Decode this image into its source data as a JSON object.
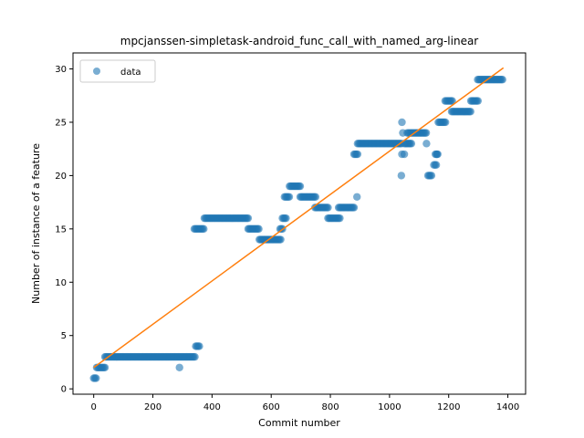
{
  "chart_data": {
    "type": "scatter",
    "title": "mpcjanssen-simpletask-android_func_call_with_named_arg-linear",
    "xlabel": "Commit number",
    "ylabel": "Number of instance of a feature",
    "xlim": [
      -70,
      1460
    ],
    "ylim": [
      -0.5,
      31.5
    ],
    "xticks": [
      0,
      200,
      400,
      600,
      800,
      1000,
      1200,
      1400
    ],
    "yticks": [
      0,
      5,
      10,
      15,
      20,
      25,
      30
    ],
    "grid": false,
    "legend": {
      "position": "top-left",
      "entries": [
        "data"
      ]
    },
    "colors": {
      "data": "#1f77b4",
      "fit": "#ff7f0e"
    },
    "series": [
      {
        "name": "data",
        "kind": "scatter",
        "segments": [
          {
            "x_start": 0,
            "x_end": 10,
            "step": 4,
            "y": 1
          },
          {
            "x_start": 10,
            "x_end": 38,
            "step": 4,
            "y": 2
          },
          {
            "x_start": 38,
            "x_end": 345,
            "step": 4,
            "y": 3
          },
          {
            "x_start": 345,
            "x_end": 358,
            "step": 4,
            "y": 4
          },
          {
            "x_start": 340,
            "x_end": 372,
            "step": 4,
            "y": 15
          },
          {
            "x_start": 374,
            "x_end": 522,
            "step": 4,
            "y": 16
          },
          {
            "x_start": 522,
            "x_end": 560,
            "step": 4,
            "y": 15
          },
          {
            "x_start": 560,
            "x_end": 632,
            "step": 4,
            "y": 14
          },
          {
            "x_start": 630,
            "x_end": 640,
            "step": 4,
            "y": 15
          },
          {
            "x_start": 638,
            "x_end": 650,
            "step": 4,
            "y": 16
          },
          {
            "x_start": 645,
            "x_end": 662,
            "step": 4,
            "y": 18
          },
          {
            "x_start": 662,
            "x_end": 700,
            "step": 4,
            "y": 19
          },
          {
            "x_start": 698,
            "x_end": 752,
            "step": 4,
            "y": 18
          },
          {
            "x_start": 748,
            "x_end": 795,
            "step": 4,
            "y": 17
          },
          {
            "x_start": 792,
            "x_end": 832,
            "step": 4,
            "y": 16
          },
          {
            "x_start": 828,
            "x_end": 880,
            "step": 4,
            "y": 17
          },
          {
            "x_start": 880,
            "x_end": 892,
            "step": 4,
            "y": 22
          },
          {
            "x_start": 892,
            "x_end": 1040,
            "step": 4,
            "y": 23
          },
          {
            "x_start": 1050,
            "x_end": 1075,
            "step": 4,
            "y": 23
          },
          {
            "x_start": 1060,
            "x_end": 1125,
            "step": 4,
            "y": 24
          },
          {
            "x_start": 1130,
            "x_end": 1145,
            "step": 4,
            "y": 20
          },
          {
            "x_start": 1150,
            "x_end": 1160,
            "step": 4,
            "y": 21
          },
          {
            "x_start": 1155,
            "x_end": 1165,
            "step": 4,
            "y": 22
          },
          {
            "x_start": 1165,
            "x_end": 1190,
            "step": 4,
            "y": 25
          },
          {
            "x_start": 1188,
            "x_end": 1215,
            "step": 4,
            "y": 27
          },
          {
            "x_start": 1210,
            "x_end": 1275,
            "step": 4,
            "y": 26
          },
          {
            "x_start": 1275,
            "x_end": 1300,
            "step": 4,
            "y": 27
          },
          {
            "x_start": 1298,
            "x_end": 1385,
            "step": 4,
            "y": 29
          }
        ],
        "points": [
          [
            290,
            2
          ],
          [
            890,
            18
          ],
          [
            1040,
            20
          ],
          [
            1042,
            22
          ],
          [
            1042,
            25
          ],
          [
            1045,
            24
          ],
          [
            1050,
            22
          ],
          [
            1125,
            23
          ],
          [
            1160,
            22
          ]
        ]
      },
      {
        "name": "",
        "kind": "line",
        "x": [
          0,
          1385
        ],
        "y": [
          2.0,
          30.1
        ]
      }
    ]
  }
}
